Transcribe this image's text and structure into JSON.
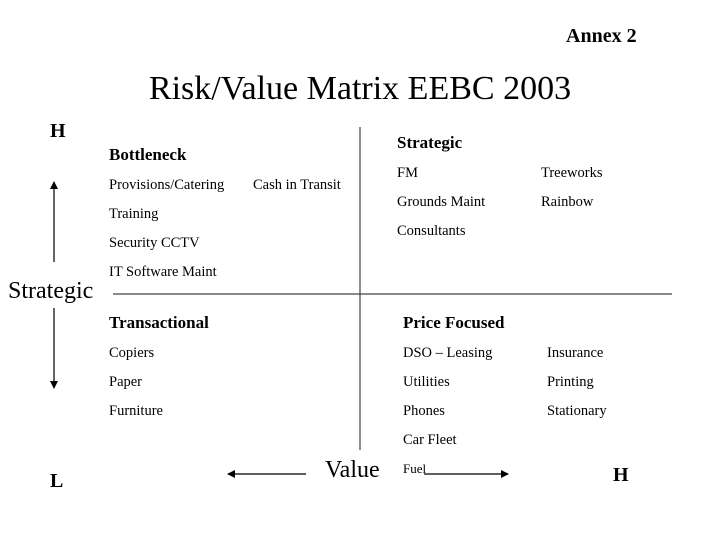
{
  "annex": "Annex 2",
  "title": "Risk/Value Matrix EEBC 2003",
  "axes": {
    "vertical_label": "Strategic",
    "horizontal_label": "Value",
    "top_high": "H",
    "bottom_low": "L",
    "right_high": "H"
  },
  "quadrants": {
    "bottleneck": {
      "title": "Bottleneck",
      "col1": [
        "Provisions/Catering",
        "Training",
        "Security CCTV",
        "IT Software Maint"
      ],
      "col2": [
        "Cash in Transit"
      ]
    },
    "strategic": {
      "title": "Strategic",
      "col1": [
        "FM",
        "Grounds Maint",
        "Consultants"
      ],
      "col2": [
        "Treeworks",
        "Rainbow"
      ]
    },
    "transactional": {
      "title": "Transactional",
      "col1": [
        "Copiers",
        "Paper",
        "Furniture"
      ],
      "col2": []
    },
    "price_focused": {
      "title": "Price Focused",
      "col1": [
        "DSO – Leasing",
        "Utilities",
        "Phones",
        "Car Fleet",
        "Fuel"
      ],
      "col2": [
        "Insurance",
        "Printing",
        "Stationary"
      ]
    }
  }
}
